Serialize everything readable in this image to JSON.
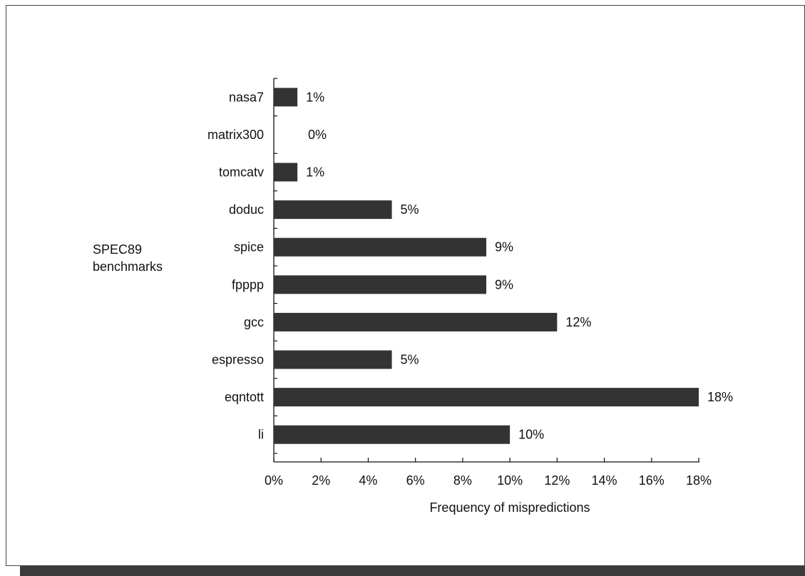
{
  "chart_data": {
    "type": "bar",
    "orientation": "horizontal",
    "categories": [
      "nasa7",
      "matrix300",
      "tomcatv",
      "doduc",
      "spice",
      "fpppp",
      "gcc",
      "espresso",
      "eqntott",
      "li"
    ],
    "values": [
      1,
      0,
      1,
      5,
      9,
      9,
      12,
      5,
      18,
      10
    ],
    "data_labels": [
      "1%",
      "0%",
      "1%",
      "5%",
      "9%",
      "9%",
      "12%",
      "5%",
      "18%",
      "10%"
    ],
    "xlabel": "Frequency of mispredictions",
    "ylabel_lines": [
      "SPEC89",
      "benchmarks"
    ],
    "xlim": [
      0,
      18
    ],
    "xticks": [
      0,
      2,
      4,
      6,
      8,
      10,
      12,
      14,
      16,
      18
    ],
    "xtick_labels": [
      "0%",
      "2%",
      "4%",
      "6%",
      "8%",
      "10%",
      "12%",
      "14%",
      "16%",
      "18%"
    ],
    "bar_color": "#333333",
    "grid": false,
    "legend": "none"
  }
}
